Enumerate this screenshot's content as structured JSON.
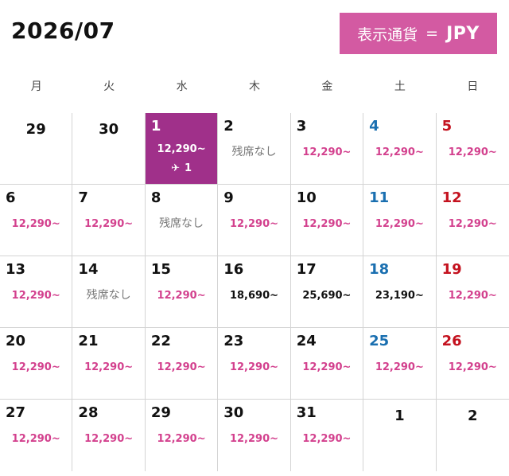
{
  "header": {
    "month_title": "2026/07",
    "currency": {
      "label": "表示通貨",
      "equals": "=",
      "code": "JPY"
    }
  },
  "weekdays": [
    "月",
    "火",
    "水",
    "木",
    "金",
    "土",
    "日"
  ],
  "colors": {
    "accent": "#d35aa2",
    "selected": "#a0308a",
    "price": "#d3418e",
    "saturday": "#1a6fb0",
    "sunday": "#c4121f"
  },
  "days": [
    {
      "day": "29",
      "other_month": true
    },
    {
      "day": "30",
      "other_month": true
    },
    {
      "day": "1",
      "price": "12,290~",
      "selected": true,
      "flights": "1",
      "flight_icon": "airplane-icon"
    },
    {
      "day": "2",
      "status": "残席なし"
    },
    {
      "day": "3",
      "price": "12,290~"
    },
    {
      "day": "4",
      "price": "12,290~",
      "weekday": "sat"
    },
    {
      "day": "5",
      "price": "12,290~",
      "weekday": "sun"
    },
    {
      "day": "6",
      "price": "12,290~"
    },
    {
      "day": "7",
      "price": "12,290~"
    },
    {
      "day": "8",
      "status": "残席なし"
    },
    {
      "day": "9",
      "price": "12,290~"
    },
    {
      "day": "10",
      "price": "12,290~"
    },
    {
      "day": "11",
      "price": "12,290~",
      "weekday": "sat"
    },
    {
      "day": "12",
      "price": "12,290~",
      "weekday": "sun"
    },
    {
      "day": "13",
      "price": "12,290~"
    },
    {
      "day": "14",
      "status": "残席なし"
    },
    {
      "day": "15",
      "price": "12,290~"
    },
    {
      "day": "16",
      "price": "18,690~",
      "high": true
    },
    {
      "day": "17",
      "price": "25,690~",
      "high": true
    },
    {
      "day": "18",
      "price": "23,190~",
      "weekday": "sat",
      "high": true
    },
    {
      "day": "19",
      "price": "12,290~",
      "weekday": "sun"
    },
    {
      "day": "20",
      "price": "12,290~"
    },
    {
      "day": "21",
      "price": "12,290~"
    },
    {
      "day": "22",
      "price": "12,290~"
    },
    {
      "day": "23",
      "price": "12,290~"
    },
    {
      "day": "24",
      "price": "12,290~"
    },
    {
      "day": "25",
      "price": "12,290~",
      "weekday": "sat"
    },
    {
      "day": "26",
      "price": "12,290~",
      "weekday": "sun"
    },
    {
      "day": "27",
      "price": "12,290~"
    },
    {
      "day": "28",
      "price": "12,290~"
    },
    {
      "day": "29",
      "price": "12,290~"
    },
    {
      "day": "30",
      "price": "12,290~"
    },
    {
      "day": "31",
      "price": "12,290~"
    },
    {
      "day": "1",
      "other_month": true
    },
    {
      "day": "2",
      "other_month": true
    }
  ]
}
